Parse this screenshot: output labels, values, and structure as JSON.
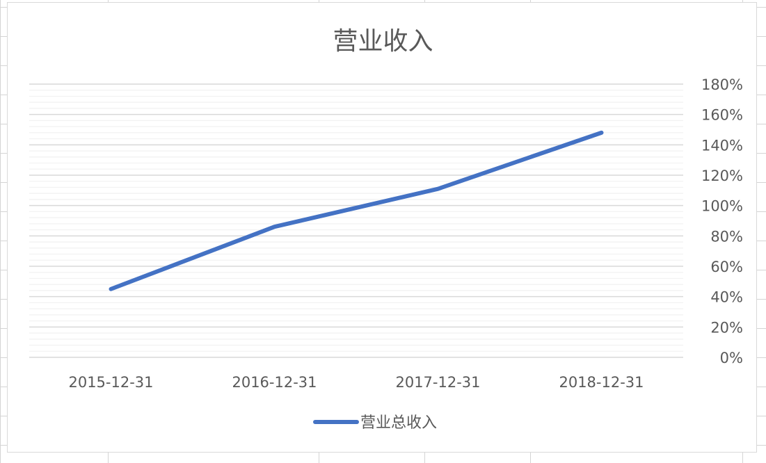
{
  "chart_data": {
    "type": "line",
    "title": "营业收入",
    "categories": [
      "2015-12-31",
      "2016-12-31",
      "2017-12-31",
      "2018-12-31"
    ],
    "series": [
      {
        "name": "营业总收入",
        "values": [
          45,
          86,
          111,
          148
        ],
        "color": "#4472c4"
      }
    ],
    "ylim": [
      0,
      180
    ],
    "y_major_step": 20,
    "y_minor_step": 4,
    "y_tick_labels": [
      "0%",
      "20%",
      "40%",
      "60%",
      "80%",
      "100%",
      "120%",
      "140%",
      "160%",
      "180%"
    ],
    "y_axis_position": "right",
    "grid": true,
    "legend": "bottom"
  }
}
